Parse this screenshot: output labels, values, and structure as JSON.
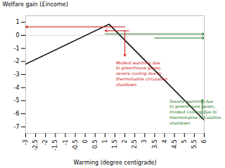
{
  "chart_data": {
    "type": "line",
    "xlabel": "Warming (degree centigrade)",
    "ylabel": "Welfare gain (£income)",
    "xlim": [
      -3,
      6
    ],
    "ylim": [
      -7.5,
      1.5
    ],
    "xticks": [
      -3,
      -2.5,
      -2,
      -1.5,
      -1,
      -0.5,
      0,
      0.5,
      1,
      1.5,
      2,
      2.5,
      3,
      3.5,
      4,
      4.5,
      5,
      5.5,
      6
    ],
    "yticks": [
      1,
      0,
      -1,
      -2,
      -3,
      -4,
      -5,
      -6,
      -7
    ],
    "grid": false,
    "x": [
      -3,
      1.2,
      6
    ],
    "values": [
      -2.2,
      0.85,
      -6.5
    ],
    "color": "#000000",
    "reference_lines": [
      {
        "y": 0,
        "color": "#cccccc"
      }
    ],
    "arrows": [
      {
        "x1": 2.0,
        "y1": 0.65,
        "x2": -3,
        "y2": 0.65,
        "color": "#cc1111"
      },
      {
        "x1": 2.2,
        "y1": 0.35,
        "x2": 1.0,
        "y2": 0.35,
        "color": "#cc1111"
      },
      {
        "x1": 1.0,
        "y1": 0.1,
        "x2": 6.0,
        "y2": 0.1,
        "color": "#227722"
      },
      {
        "x1": 3.5,
        "y1": -0.2,
        "x2": 6.0,
        "y2": -0.2,
        "color": "#227722"
      },
      {
        "x1": 2.0,
        "y1": 0.35,
        "x2": 2.0,
        "y2": -1.6,
        "color": "#cc1111"
      },
      {
        "x1": 5.9,
        "y1": -6.2,
        "x2": 5.9,
        "y2": -4.9,
        "color": "#227722"
      }
    ],
    "annotations": [
      {
        "text": "Modest warming due\nto greenhouse gases,\nsevere cooling due to\nthermohaline circulation\nshutdown",
        "x": 1.55,
        "y": -1.9,
        "color": "#cc1111"
      },
      {
        "text": "Severe warming due\nto greenhouse gases,\nmodest cooling due to\nthermohaline circulation\nshutdown",
        "x": 4.25,
        "y": -4.85,
        "color": "#227722"
      }
    ]
  }
}
